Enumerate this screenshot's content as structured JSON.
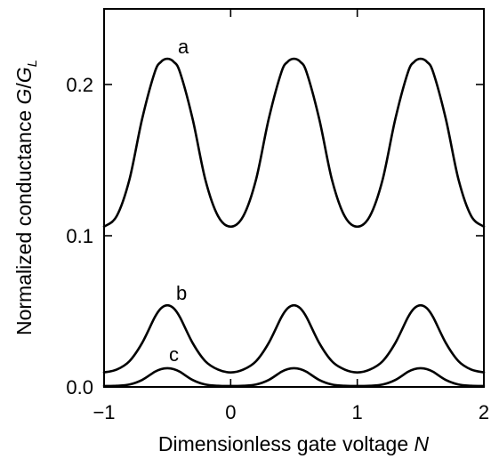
{
  "chart_data": {
    "type": "line",
    "title": "",
    "xlabel": "Dimensionless gate voltage N",
    "ylabel": "Normalized conductance G/G_L",
    "xlabel_parts": {
      "text": "Dimensionless gate voltage ",
      "var": "N"
    },
    "ylabel_parts": {
      "text": "Normalized conductance ",
      "var": "G",
      "slash": "/",
      "var2": "G",
      "sub": "L"
    },
    "xlim": [
      -1,
      2
    ],
    "ylim": [
      0,
      0.25
    ],
    "xticks": [
      -1,
      0,
      1,
      2
    ],
    "xtick_labels": [
      "−1",
      "0",
      "1",
      "2"
    ],
    "yticks": [
      0.0,
      0.1,
      0.2
    ],
    "ytick_labels": [
      "0.0",
      "0.1",
      "0.2"
    ],
    "grid": false,
    "legend": "none",
    "x": [
      -1.0,
      -0.9,
      -0.8,
      -0.7,
      -0.6,
      -0.55,
      -0.5,
      -0.45,
      -0.4,
      -0.3,
      -0.2,
      -0.1,
      0.0,
      0.1,
      0.2,
      0.3,
      0.4,
      0.45,
      0.5,
      0.55,
      0.6,
      0.7,
      0.8,
      0.9,
      1.0,
      1.1,
      1.2,
      1.3,
      1.4,
      1.45,
      1.5,
      1.55,
      1.6,
      1.7,
      1.8,
      1.9,
      2.0
    ],
    "series": [
      {
        "label": "a",
        "values": [
          0.106,
          0.113,
          0.137,
          0.177,
          0.208,
          0.215,
          0.217,
          0.215,
          0.208,
          0.177,
          0.137,
          0.113,
          0.106,
          0.113,
          0.137,
          0.177,
          0.208,
          0.215,
          0.217,
          0.215,
          0.208,
          0.177,
          0.137,
          0.113,
          0.106,
          0.113,
          0.137,
          0.177,
          0.208,
          0.215,
          0.217,
          0.215,
          0.208,
          0.177,
          0.137,
          0.113,
          0.106
        ]
      },
      {
        "label": "b",
        "values": [
          0.0096,
          0.0115,
          0.017,
          0.029,
          0.046,
          0.052,
          0.054,
          0.052,
          0.046,
          0.029,
          0.017,
          0.0115,
          0.0096,
          0.0115,
          0.017,
          0.029,
          0.046,
          0.052,
          0.054,
          0.052,
          0.046,
          0.029,
          0.017,
          0.0115,
          0.0096,
          0.0115,
          0.017,
          0.029,
          0.046,
          0.052,
          0.054,
          0.052,
          0.046,
          0.029,
          0.017,
          0.0115,
          0.0096
        ]
      },
      {
        "label": "c",
        "values": [
          0.0006,
          0.0008,
          0.0016,
          0.0046,
          0.01,
          0.0118,
          0.0124,
          0.0118,
          0.01,
          0.0046,
          0.0016,
          0.0008,
          0.0006,
          0.0008,
          0.0016,
          0.0046,
          0.01,
          0.0118,
          0.0124,
          0.0118,
          0.01,
          0.0046,
          0.0016,
          0.0008,
          0.0006,
          0.0008,
          0.0016,
          0.0046,
          0.01,
          0.0118,
          0.0124,
          0.0118,
          0.01,
          0.0046,
          0.0016,
          0.0008,
          0.0006
        ]
      }
    ]
  }
}
